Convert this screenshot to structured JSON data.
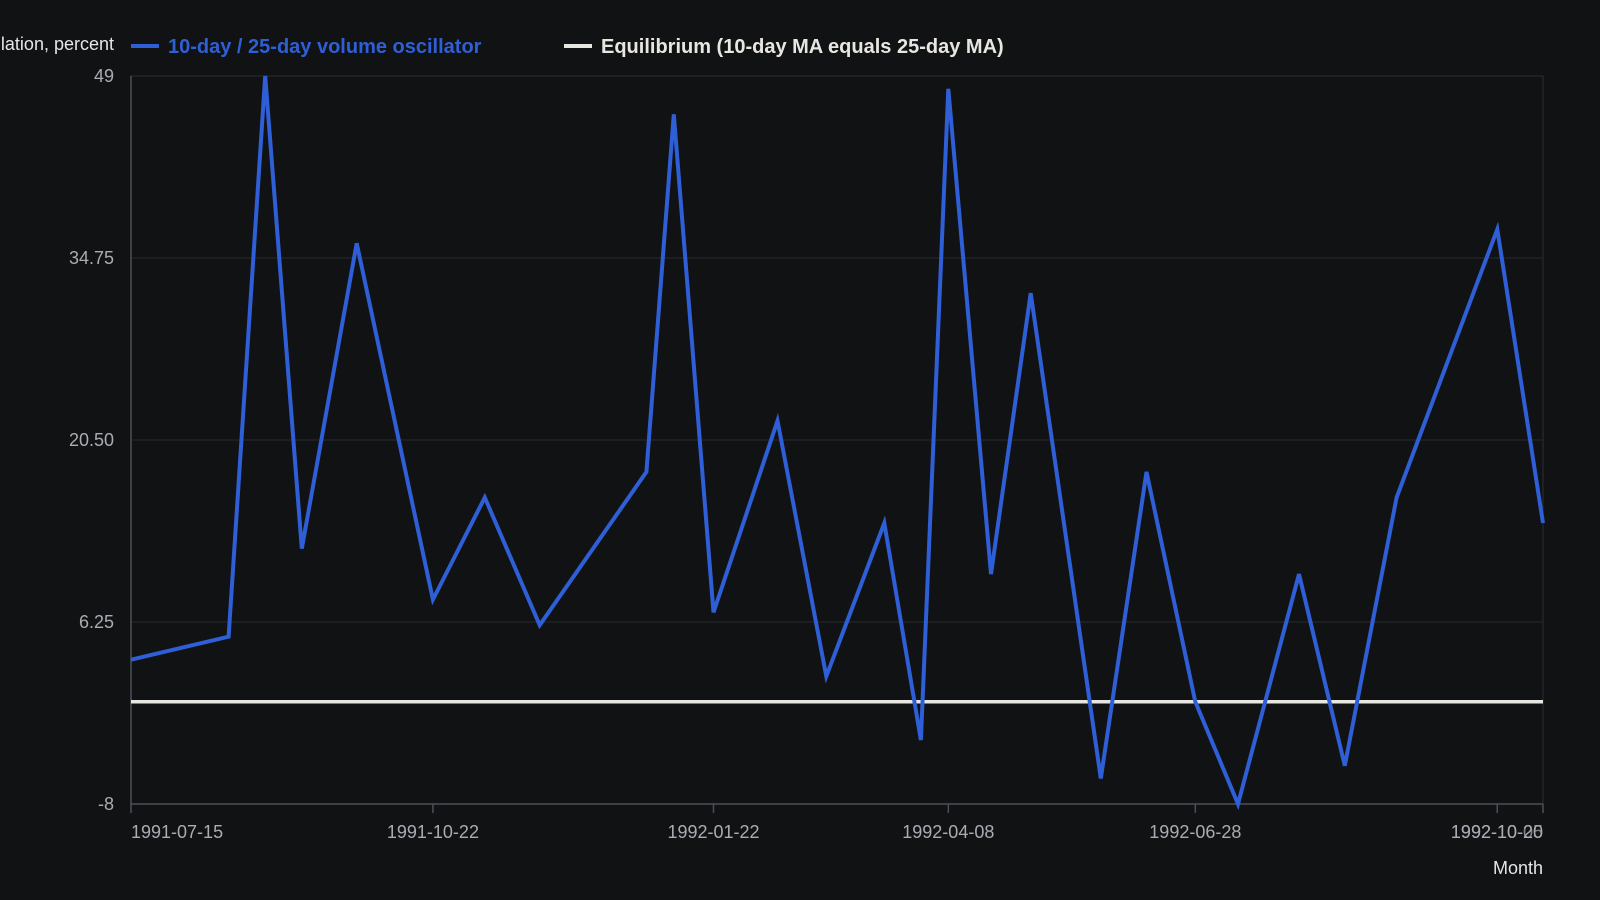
{
  "chart_data": {
    "type": "line",
    "title": "",
    "ylabel": "Oscillation, percent",
    "xlabel": "Month",
    "y_ticks": [
      "49",
      "34.75",
      "20.50",
      "6.25",
      "-8"
    ],
    "ylim": [
      -8,
      49
    ],
    "x_ticks": [
      {
        "label": "1991-07-15",
        "date": "1991-07-15"
      },
      {
        "label": "1991-10-22",
        "date": "1991-10-22"
      },
      {
        "label": "1992-01-22",
        "date": "1992-01-22"
      },
      {
        "label": "1992-04-08",
        "date": "1992-04-08"
      },
      {
        "label": "1992-06-28",
        "date": "1992-06-28"
      },
      {
        "label": "1992-10-05",
        "date": "1992-10-05"
      },
      {
        "label": "1992-10-20",
        "date": "1992-10-20"
      }
    ],
    "xlim": [
      "1991-07-15",
      "1992-10-20"
    ],
    "grid": true,
    "legend_position": "top",
    "series": [
      {
        "name": "10-day / 25-day volume oscillator",
        "color": "#2f5fd6",
        "points": [
          {
            "x": "1991-07-15",
            "y": 3.3
          },
          {
            "x": "1991-08-16",
            "y": 5.1
          },
          {
            "x": "1991-08-28",
            "y": 49.0
          },
          {
            "x": "1991-09-09",
            "y": 12.0
          },
          {
            "x": "1991-09-27",
            "y": 35.9
          },
          {
            "x": "1991-10-22",
            "y": 8.0
          },
          {
            "x": "1991-11-08",
            "y": 16.0
          },
          {
            "x": "1991-11-26",
            "y": 6.0
          },
          {
            "x": "1991-12-31",
            "y": 18.0
          },
          {
            "x": "1992-01-09",
            "y": 46.0
          },
          {
            "x": "1992-01-22",
            "y": 7.0
          },
          {
            "x": "1992-02-12",
            "y": 22.0
          },
          {
            "x": "1992-02-28",
            "y": 2.0
          },
          {
            "x": "1992-03-18",
            "y": 14.0
          },
          {
            "x": "1992-03-30",
            "y": -3.0
          },
          {
            "x": "1992-04-08",
            "y": 48.0
          },
          {
            "x": "1992-04-22",
            "y": 10.0
          },
          {
            "x": "1992-05-05",
            "y": 32.0
          },
          {
            "x": "1992-05-28",
            "y": -6.0
          },
          {
            "x": "1992-06-12",
            "y": 18.0
          },
          {
            "x": "1992-06-28",
            "y": 0.0
          },
          {
            "x": "1992-07-12",
            "y": -8.0
          },
          {
            "x": "1992-08-01",
            "y": 10.0
          },
          {
            "x": "1992-08-16",
            "y": -5.0
          },
          {
            "x": "1992-09-02",
            "y": 16.0
          },
          {
            "x": "1992-10-05",
            "y": 37.0
          },
          {
            "x": "1992-10-20",
            "y": 14.0
          }
        ]
      },
      {
        "name": "Equilibrium (10-day MA equals 25-day MA)",
        "color": "#e8e6e1",
        "points": [
          {
            "x": "1991-07-15",
            "y": 0
          },
          {
            "x": "1992-10-20",
            "y": 0
          }
        ]
      }
    ]
  }
}
